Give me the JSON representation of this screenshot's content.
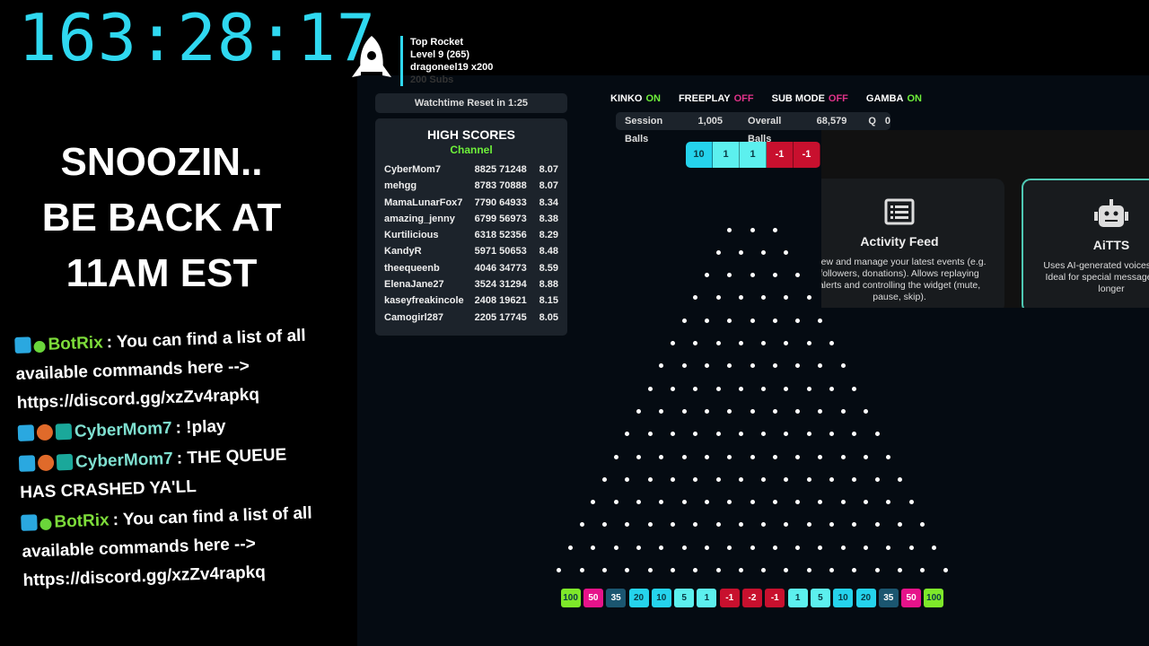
{
  "timer": "163:28:17",
  "away": [
    "SNOOZIN..",
    "BE BACK AT",
    "11AM EST"
  ],
  "chat": [
    {
      "user": "BotRix",
      "text": ": You can find a list of all available commands here --> https://discord.gg/xzZv4rapkq",
      "type": "bot"
    },
    {
      "user": "CyberMom7",
      "text": ": !play",
      "type": "user"
    },
    {
      "user": "CyberMom7",
      "text": ": THE QUEUE HAS CRASHED YA'LL",
      "type": "user"
    },
    {
      "user": "BotRix",
      "text": ": You can find a list of all available commands here --> https://discord.gg/xzZv4rapkq",
      "type": "bot"
    }
  ],
  "rocket": {
    "title": "Top Rocket",
    "level": "Level 9  (265)",
    "user": "dragoneel19 x200",
    "subs": "200 Subs",
    "icon": "rocket-icon"
  },
  "watchtime": "Watchtime Reset in  1:25",
  "high_scores": {
    "title": "HIGH SCORES",
    "scope": "Channel",
    "rows": [
      [
        "CyberMom7",
        "8825 71248",
        "8.07"
      ],
      [
        "mehgg",
        "8783 70888",
        "8.07"
      ],
      [
        "MamaLunarFox7",
        "7790 64933",
        "8.34"
      ],
      [
        "amazing_jenny",
        "6799 56973",
        "8.38"
      ],
      [
        "Kurtilicious",
        "6318 52356",
        "8.29"
      ],
      [
        "KandyR",
        "5971 50653",
        "8.48"
      ],
      [
        "theequeenb",
        "4046 34773",
        "8.59"
      ],
      [
        "ElenaJane27",
        "3524 31294",
        "8.88"
      ],
      [
        "kaseyfreakincole",
        "2408 19621",
        "8.15"
      ],
      [
        "Camogirl287",
        "2205 17745",
        "8.05"
      ]
    ]
  },
  "modes": [
    {
      "label": "KINKO",
      "state": "ON"
    },
    {
      "label": "FREEPLAY",
      "state": "OFF"
    },
    {
      "label": "SUB MODE",
      "state": "OFF"
    },
    {
      "label": "GAMBA",
      "state": "ON"
    }
  ],
  "stats": {
    "session_label": "Session Balls",
    "session": "1,005",
    "overall_label": "Overall Balls",
    "overall": "68,579",
    "q_label": "Q",
    "q": "0"
  },
  "recent": [
    "10",
    "1",
    "1",
    "-1",
    "-1"
  ],
  "board": {
    "peg_rows": 16,
    "first_row_pegs": 3,
    "slots": [
      "100",
      "50",
      "35",
      "20",
      "10",
      "5",
      "1",
      "-1",
      "-2",
      "-1",
      "1",
      "5",
      "10",
      "20",
      "35",
      "50",
      "100"
    ]
  },
  "colors": {
    "100": "#7ee82a",
    "50": "#e6138a",
    "35": "#1b5670",
    "20": "#25d3ec",
    "10": "#25d3ec",
    "5": "#5cf0ee",
    "1": "#5cf0ee",
    "-1": "#c8102e",
    "-2": "#c8102e"
  },
  "widget": {
    "cards": [
      {
        "title": "Activity Feed",
        "icon": "list-icon",
        "desc": "View and manage your latest events (e.g. followers, donations). Allows replaying alerts and controlling the widget (mute, pause, skip)."
      },
      {
        "title": "AiTTS",
        "icon": "robot-icon",
        "desc": "Uses AI-generated voices touch. Ideal for special messages take longer"
      }
    ]
  }
}
